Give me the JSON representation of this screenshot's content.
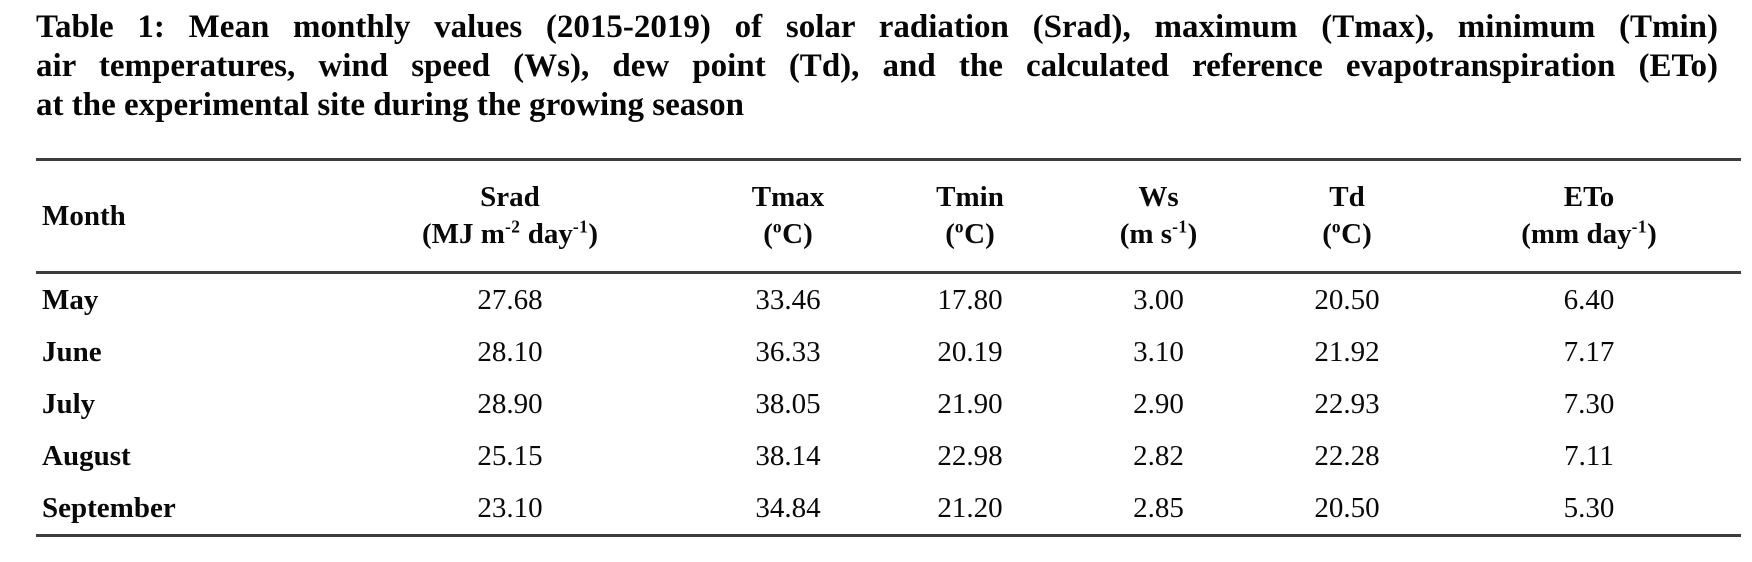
{
  "caption": {
    "lines": [
      "Table 1: Mean monthly values (2015-2019) of solar radiation (Srad), maximum (Tmax), minimum (Tmin)",
      "air temperatures, wind speed (Ws), dew point (Td), and the calculated reference evapotranspiration (ETo)",
      "at the experimental site during the growing season"
    ]
  },
  "table": {
    "header": {
      "month_label": "Month",
      "columns": [
        {
          "name": "Srad",
          "unit": "(MJ m^{-2} day^{-1})"
        },
        {
          "name": "Tmax",
          "unit": "(^{o}C)"
        },
        {
          "name": "Tmin",
          "unit": "(^{o}C)"
        },
        {
          "name": "Ws",
          "unit": "(m s^{-1})"
        },
        {
          "name": "Td",
          "unit": "(^{o}C)"
        },
        {
          "name": "ETo",
          "unit": "(mm day^{-1})"
        }
      ]
    },
    "rows": [
      {
        "month": "May",
        "values": [
          "27.68",
          "33.46",
          "17.80",
          "3.00",
          "20.50",
          "6.40"
        ]
      },
      {
        "month": "June",
        "values": [
          "28.10",
          "36.33",
          "20.19",
          "3.10",
          "21.92",
          "7.17"
        ]
      },
      {
        "month": "July",
        "values": [
          "28.90",
          "38.05",
          "21.90",
          "2.90",
          "22.93",
          "7.30"
        ]
      },
      {
        "month": "August",
        "values": [
          "25.15",
          "38.14",
          "22.98",
          "2.82",
          "22.28",
          "7.11"
        ]
      },
      {
        "month": "September",
        "values": [
          "23.10",
          "34.84",
          "21.20",
          "2.85",
          "20.50",
          "5.30"
        ]
      }
    ]
  },
  "colors": {
    "text": "#070707",
    "rule": "#3d3d3d",
    "background": "#ffffff"
  }
}
